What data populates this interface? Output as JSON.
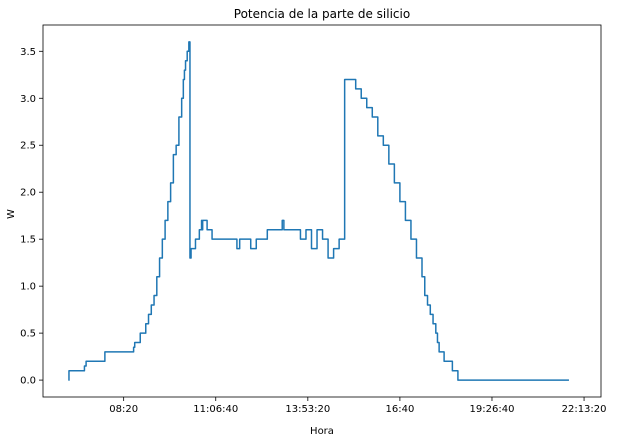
{
  "chart_data": {
    "type": "line",
    "title": "Potencia de la parte de silicio",
    "xlabel": "Hora",
    "ylabel": "W",
    "xlim": [
      "05:54",
      "22:44"
    ],
    "ylim": [
      -0.18,
      3.78
    ],
    "grid": false,
    "x_ticks": [
      "08:20",
      "11:06:40",
      "13:53:20",
      "16:40",
      "19:26:40",
      "22:13:20"
    ],
    "y_ticks": [
      "0.0",
      "0.5",
      "1.0",
      "1.5",
      "2.0",
      "2.5",
      "3.0",
      "3.5"
    ],
    "series": [
      {
        "color": "#1f77b4",
        "x": [
          "06:40",
          "06:41",
          "06:43",
          "06:50",
          "07:00",
          "07:09",
          "07:12",
          "07:20",
          "07:30",
          "07:44",
          "07:46",
          "08:00",
          "08:20",
          "08:38",
          "08:40",
          "08:50",
          "09:00",
          "09:05",
          "09:10",
          "09:15",
          "09:20",
          "09:25",
          "09:30",
          "09:35",
          "09:40",
          "09:45",
          "09:50",
          "09:55",
          "10:00",
          "10:05",
          "10:08",
          "10:10",
          "10:12",
          "10:15",
          "10:18",
          "10:20",
          "10:22",
          "10:25",
          "10:28",
          "10:30",
          "10:33",
          "10:35",
          "10:37",
          "10:39",
          "10:40",
          "10:41",
          "10:42",
          "10:43",
          "10:45",
          "10:50",
          "10:51",
          "10:52",
          "11:00",
          "11:10",
          "11:20",
          "11:30",
          "11:40",
          "11:45",
          "11:50",
          "12:00",
          "12:10",
          "12:20",
          "12:30",
          "12:40",
          "12:50",
          "13:00",
          "13:05",
          "13:07",
          "13:10",
          "13:20",
          "13:30",
          "13:40",
          "13:50",
          "14:00",
          "14:10",
          "14:20",
          "14:30",
          "14:40",
          "14:50",
          "15:00",
          "15:10",
          "15:20",
          "15:30",
          "15:40",
          "15:50",
          "16:00",
          "16:10",
          "16:20",
          "16:30",
          "16:40",
          "16:50",
          "17:00",
          "17:10",
          "17:20",
          "17:25",
          "17:30",
          "17:35",
          "17:40",
          "17:45",
          "17:48",
          "17:50",
          "17:51",
          "17:53",
          "17:57",
          "18:00",
          "18:05",
          "18:10",
          "18:15",
          "18:20",
          "18:25",
          "18:30",
          "18:40",
          "18:50",
          "19:00",
          "19:10",
          "19:20",
          "19:30",
          "19:45",
          "20:00",
          "20:15",
          "20:30",
          "20:50",
          "21:10",
          "21:30",
          "21:44",
          "21:45",
          "21:46"
        ],
        "values": [
          0.0,
          0.1,
          0.1,
          0.1,
          0.1,
          0.15,
          0.2,
          0.2,
          0.2,
          0.2,
          0.3,
          0.3,
          0.3,
          0.35,
          0.4,
          0.5,
          0.6,
          0.7,
          0.8,
          0.9,
          1.1,
          1.3,
          1.5,
          1.7,
          1.9,
          2.1,
          2.4,
          2.5,
          2.8,
          3.0,
          3.2,
          3.3,
          3.4,
          3.5,
          3.6,
          1.3,
          1.4,
          1.4,
          1.4,
          1.5,
          1.5,
          1.5,
          1.6,
          1.6,
          1.6,
          1.7,
          1.6,
          1.7,
          1.7,
          1.7,
          1.6,
          1.6,
          1.5,
          1.5,
          1.5,
          1.5,
          1.5,
          1.4,
          1.5,
          1.5,
          1.4,
          1.5,
          1.5,
          1.6,
          1.6,
          1.6,
          1.6,
          1.7,
          1.6,
          1.6,
          1.6,
          1.5,
          1.6,
          1.4,
          1.6,
          1.5,
          1.3,
          1.4,
          1.5,
          3.2,
          3.2,
          3.1,
          3.0,
          2.9,
          2.8,
          2.6,
          2.5,
          2.3,
          2.1,
          1.9,
          1.7,
          1.5,
          1.3,
          1.1,
          0.9,
          0.8,
          0.7,
          0.6,
          0.5,
          0.4,
          0.4,
          0.3,
          0.3,
          0.3,
          0.2,
          0.2,
          0.2,
          0.1,
          0.1,
          0.0,
          0.0,
          0.0,
          0.0,
          0.0,
          0.0,
          0.0,
          0.0,
          0.0,
          0.0,
          0.0,
          0.0,
          0.0,
          0.0,
          0.0,
          0.0,
          0.0,
          0.0
        ]
      }
    ]
  }
}
